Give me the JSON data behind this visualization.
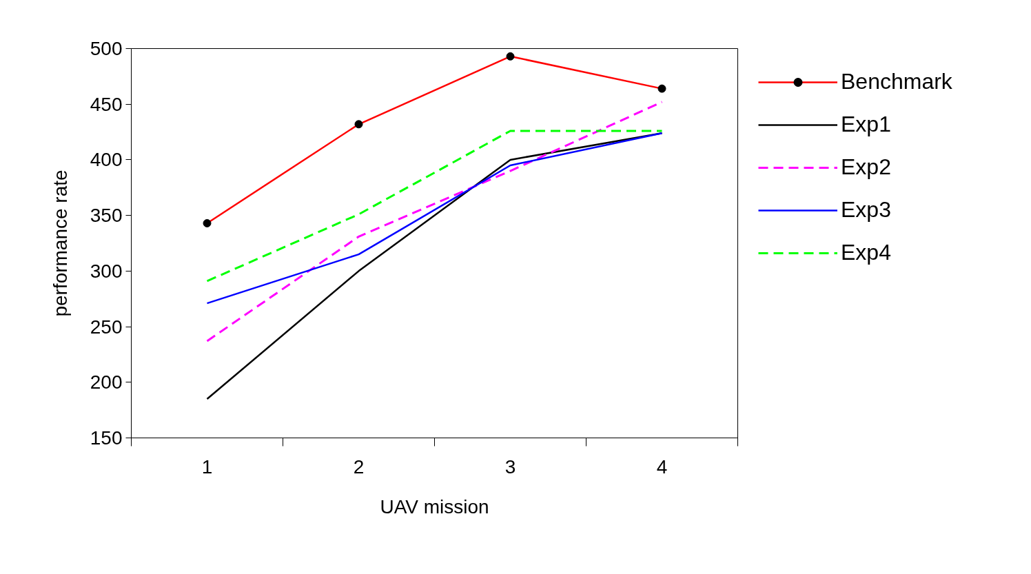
{
  "chart_data": {
    "type": "line",
    "xlabel": "UAV mission",
    "ylabel": "performance rate",
    "categories": [
      "1",
      "2",
      "3",
      "4"
    ],
    "ylim": [
      150,
      500
    ],
    "yticks": [
      150,
      200,
      250,
      300,
      350,
      400,
      450,
      500
    ],
    "grid": false,
    "legend": "right",
    "series": [
      {
        "name": "Benchmark",
        "color": "#ff0000",
        "values": [
          343,
          432,
          493,
          464
        ],
        "marker": "circle",
        "line_style": "solid"
      },
      {
        "name": "Exp1",
        "color": "#000000",
        "values": [
          185,
          300,
          400,
          424
        ],
        "marker": "none",
        "line_style": "solid"
      },
      {
        "name": "Exp2",
        "color": "#ff00ff",
        "values": [
          237,
          331,
          390,
          452
        ],
        "marker": "none",
        "line_style": "dashed"
      },
      {
        "name": "Exp3",
        "color": "#0000ff",
        "values": [
          271,
          315,
          395,
          424
        ],
        "marker": "none",
        "line_style": "solid"
      },
      {
        "name": "Exp4",
        "color": "#00ff00",
        "values": [
          291,
          351,
          426,
          426
        ],
        "marker": "none",
        "line_style": "dashed"
      }
    ]
  }
}
